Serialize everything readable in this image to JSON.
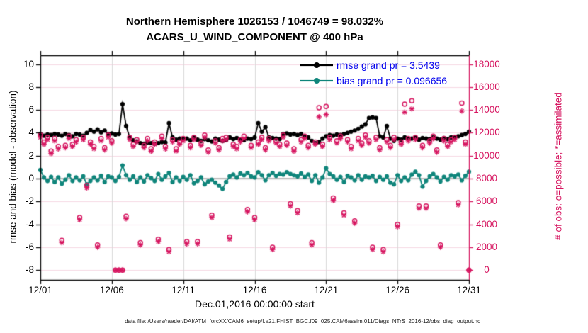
{
  "header": {
    "title_line1": "Northern Hemisphere 1026153 / 1046749 = 98.032%",
    "title_line2": "ACARS_U_WIND_COMPONENT @ 400 hPa"
  },
  "legend": {
    "text_color": "#0000ee",
    "entries": [
      {
        "label": "rmse grand pr = 3.5439",
        "color": "#000000"
      },
      {
        "label": "bias grand pr = 0.096656",
        "color": "#0f857b"
      }
    ]
  },
  "axes": {
    "left_label": "rmse and bias (model - observation)",
    "right_label": "# of obs: o=possible; *=assimilated",
    "x_label": "Dec.01,2016 00:00:00 start"
  },
  "caption": "data file: /Users/raeder/DAI/ATM_forcXX/CAM6_setup/f.e21.FHIST_BGC.f09_025.CAM6assim.011/Diags_NTrS_2016-12/obs_diag_output.nc",
  "colors": {
    "rmse": "#000000",
    "bias": "#0f857b",
    "obs": "#d6145f",
    "grid_horizontal": "#f6d9e3",
    "grid_vertical": "#d8d8d8",
    "zero_line": "#bbbbbb",
    "spine": "#000000"
  },
  "chart_data": {
    "type": "line",
    "title": "Northern Hemisphere 1026153 / 1046749 = 98.032% — ACARS_U_WIND_COMPONENT @ 400 hPa",
    "xlabel": "Dec.01,2016 00:00:00 start",
    "ylabel_left": "rmse and bias (model - observation)",
    "ylabel_right": "# of obs: o=possible; *=assimilated",
    "x_tick_labels": [
      "12/01",
      "12/06",
      "12/11",
      "12/16",
      "12/21",
      "12/26",
      "12/31"
    ],
    "x_tick_days": [
      1,
      6,
      11,
      16,
      21,
      26,
      31
    ],
    "y_left_ticks": [
      -8,
      -6,
      -4,
      -2,
      0,
      2,
      4,
      6,
      8,
      10
    ],
    "y_right_ticks": [
      0,
      2000,
      4000,
      6000,
      8000,
      10000,
      12000,
      14000,
      16000,
      18000
    ],
    "ylim_left": [
      -8.85,
      10.78
    ],
    "ylim_right": [
      -850,
      10780
    ],
    "right_per_left_unit": 1000,
    "x_start_day": 1,
    "x_step_days": 0.25,
    "rmse_grand_pr": 3.5439,
    "bias_grand_pr": 0.096656,
    "series": [
      {
        "name": "rmse",
        "axis": "left",
        "style": "line-dot",
        "color": "#000000",
        "values": [
          3.9,
          3.75,
          3.85,
          3.8,
          3.9,
          3.85,
          3.75,
          3.9,
          3.8,
          3.7,
          3.9,
          3.85,
          3.75,
          4.0,
          4.25,
          4.1,
          4.3,
          4.05,
          4.2,
          3.9,
          3.95,
          3.85,
          3.9,
          6.5,
          4.6,
          3.6,
          3.35,
          3.25,
          3.1,
          3.05,
          3.15,
          3.1,
          3.05,
          3.1,
          3.2,
          3.15,
          4.85,
          3.6,
          3.4,
          3.5,
          3.45,
          3.5,
          3.35,
          3.6,
          3.4,
          3.3,
          3.45,
          3.35,
          3.25,
          3.5,
          3.4,
          3.3,
          3.35,
          3.6,
          3.45,
          3.55,
          3.4,
          3.35,
          3.5,
          3.45,
          3.6,
          4.85,
          4.1,
          4.5,
          3.6,
          3.55,
          3.5,
          3.45,
          3.9,
          3.95,
          3.85,
          3.9,
          3.8,
          3.9,
          3.7,
          3.6,
          3.3,
          3.1,
          3.2,
          3.5,
          3.7,
          3.8,
          3.75,
          3.85,
          3.8,
          3.9,
          4.0,
          4.1,
          4.2,
          4.35,
          4.55,
          4.75,
          5.3,
          5.35,
          5.3,
          3.7,
          3.6,
          4.6,
          3.5,
          3.3,
          3.5,
          3.4,
          3.6,
          3.5,
          3.5,
          3.6,
          3.4,
          3.55,
          3.5,
          3.45,
          3.6,
          3.5,
          3.4,
          3.55,
          3.45,
          3.6,
          3.6,
          3.7,
          3.8,
          3.9,
          4.1
        ]
      },
      {
        "name": "bias",
        "axis": "left",
        "style": "line-dot",
        "color": "#0f857b",
        "values": [
          0.75,
          0.1,
          -0.2,
          0.15,
          -0.3,
          0.1,
          -0.45,
          -0.1,
          0.3,
          -0.2,
          0.1,
          -0.15,
          0.2,
          -0.5,
          -0.2,
          0.1,
          -0.15,
          0.25,
          -0.3,
          0.2,
          0.1,
          -0.2,
          0.15,
          1.15,
          0.3,
          -0.1,
          0.2,
          -0.3,
          0.1,
          -0.25,
          0.3,
          0.05,
          -0.2,
          0.4,
          -0.1,
          0.2,
          0.5,
          -0.3,
          0.1,
          -0.2,
          0.15,
          -0.1,
          0.3,
          -0.4,
          -0.2,
          0.1,
          -0.5,
          -0.25,
          -0.1,
          -0.35,
          -0.6,
          -0.9,
          -0.3,
          0.2,
          0.35,
          0.1,
          0.45,
          0.3,
          0.5,
          0.2,
          0.1,
          0.55,
          0.3,
          -0.15,
          0.3,
          0.5,
          0.25,
          0.4,
          0.35,
          0.55,
          0.4,
          0.3,
          0.2,
          0.45,
          0.15,
          0.35,
          -0.2,
          0.3,
          -0.35,
          0.1,
          0.9,
          0.4,
          0.2,
          -0.1,
          0.15,
          -0.3,
          0.25,
          0.1,
          -0.15,
          0.3,
          -0.1,
          0.2,
          0.1,
          0.25,
          -0.2,
          0.15,
          -0.1,
          0.2,
          -0.35,
          -0.5,
          0.3,
          -0.2,
          0.1,
          -0.15,
          0.35,
          0.6,
          0.3,
          -0.7,
          -0.2,
          0.2,
          0.4,
          0.1,
          -0.25,
          0.15,
          -0.1,
          0.3,
          0.2,
          0.35,
          -0.15,
          0.25,
          0.6
        ]
      },
      {
        "name": "possible",
        "axis": "right",
        "style": "circle",
        "color": "#d6145f",
        "values": [
          11800,
          11200,
          11600,
          10400,
          11500,
          10800,
          2600,
          10900,
          11700,
          11000,
          11400,
          4600,
          11600,
          7400,
          11200,
          10800,
          2200,
          11500,
          10700,
          11800,
          11300,
          0,
          0,
          0,
          4700,
          11600,
          11000,
          11400,
          2400,
          10900,
          11500,
          10600,
          11200,
          2700,
          11700,
          10800,
          1800,
          11400,
          10600,
          11200,
          11500,
          2500,
          10900,
          11600,
          2500,
          11100,
          11800,
          10500,
          4800,
          11300,
          10700,
          11500,
          11600,
          2900,
          11000,
          10800,
          11400,
          11700,
          5300,
          10900,
          4600,
          11200,
          11600,
          10700,
          11500,
          2000,
          11300,
          11000,
          11800,
          11100,
          5800,
          10600,
          5200,
          11400,
          11700,
          10900,
          2400,
          11200,
          14200,
          11000,
          14300,
          11600,
          6300,
          11300,
          11700,
          5000,
          11400,
          10800,
          4300,
          11500,
          11100,
          11800,
          11300,
          2000,
          11600,
          10700,
          1800,
          11400,
          10900,
          11600,
          4000,
          11200,
          14500,
          11500,
          14800,
          11600,
          5600,
          10900,
          5600,
          11300,
          11700,
          10500,
          2200,
          11500,
          11000,
          11400,
          11600,
          5900,
          14600,
          11200,
          0
        ]
      },
      {
        "name": "assimilated",
        "axis": "right",
        "style": "asterisk",
        "color": "#d6145f",
        "values": [
          11600,
          11000,
          11400,
          10200,
          11300,
          10600,
          2400,
          10700,
          11500,
          10800,
          11200,
          4400,
          11400,
          7200,
          11000,
          10600,
          2000,
          11300,
          10500,
          11600,
          11100,
          0,
          0,
          0,
          4500,
          11400,
          10800,
          11200,
          2200,
          10700,
          11300,
          10400,
          11000,
          2500,
          11500,
          10600,
          1600,
          11200,
          10400,
          11000,
          11300,
          2300,
          10700,
          11400,
          2300,
          10900,
          11600,
          10300,
          4600,
          11100,
          10500,
          11300,
          11400,
          2700,
          10800,
          10600,
          11200,
          11500,
          5100,
          10700,
          4400,
          11000,
          11400,
          10500,
          11300,
          1800,
          11100,
          10800,
          11600,
          10900,
          5600,
          10400,
          5000,
          11200,
          11500,
          10700,
          2200,
          11000,
          13400,
          10800,
          13600,
          11400,
          6100,
          11100,
          11500,
          4800,
          11200,
          10600,
          4100,
          11300,
          10900,
          11600,
          11100,
          1800,
          11400,
          10500,
          1600,
          11200,
          10700,
          11400,
          3800,
          11000,
          13800,
          11300,
          14100,
          11400,
          5400,
          10700,
          5400,
          11100,
          11500,
          10300,
          2000,
          11300,
          10800,
          11200,
          11400,
          5700,
          13900,
          11000,
          0
        ]
      }
    ]
  }
}
